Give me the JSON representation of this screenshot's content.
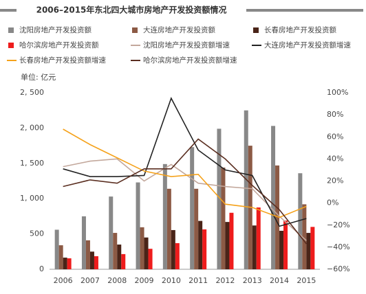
{
  "chart_data": {
    "type": "bar",
    "title": "2006–2015年东北四大城市房地产开发投资额情况",
    "y_label": "单位: 亿元",
    "categories": [
      "2006",
      "2007",
      "2008",
      "2009",
      "2010",
      "2011",
      "2012",
      "2013",
      "2014",
      "2015"
    ],
    "series": [
      {
        "name": "沈阳房地产开发投资额",
        "color": "#888888",
        "values": [
          560,
          750,
          1030,
          1230,
          1490,
          1730,
          1990,
          2250,
          2030,
          1360
        ]
      },
      {
        "name": "大连房地产开发投资额",
        "color": "#8c5a45",
        "values": [
          340,
          410,
          515,
          595,
          1140,
          1140,
          1440,
          1750,
          1470,
          920
        ]
      },
      {
        "name": "长春房地产开发投资额",
        "color": "#4a2418",
        "values": [
          165,
          250,
          350,
          450,
          555,
          685,
          670,
          620,
          545,
          515
        ]
      },
      {
        "name": "哈尔滨房地产开发投资额",
        "color": "#ee1c1c",
        "values": [
          155,
          185,
          215,
          290,
          370,
          565,
          800,
          875,
          690,
          600
        ]
      },
      {
        "name": "沈阳房地产开发投资额增速",
        "color": "#c3a89c",
        "axis": "y2",
        "values": [
          33,
          38,
          40,
          20,
          35,
          18,
          15,
          13,
          -12,
          -34
        ]
      },
      {
        "name": "大连房地产开发投资额增速",
        "color": "#222222",
        "axis": "y2",
        "values": [
          31,
          24,
          24,
          25,
          95,
          48,
          30,
          25,
          -21,
          -14
        ]
      },
      {
        "name": "长春房地产开发投资额增速",
        "color": "#f5a21b",
        "axis": "y2",
        "values": [
          67,
          53,
          41,
          29,
          24,
          26,
          -1,
          -4,
          -13,
          -3
        ]
      },
      {
        "name": "哈尔滨房地产开发投资额增速",
        "color": "#5a2e20",
        "axis": "y2",
        "values": [
          15,
          21,
          18,
          31,
          31,
          58,
          40,
          16,
          -6,
          -37
        ]
      }
    ],
    "ylim": [
      0,
      2500
    ],
    "yticks": [
      0,
      500,
      {
        "value": 1000,
        "label": "1, 000"
      },
      {
        "value": 1500,
        "label": "1, 500"
      },
      {
        "value": 2000,
        "label": "2, 000"
      },
      {
        "value": 2500,
        "label": "2, 500"
      }
    ],
    "y2lim": [
      -60,
      100
    ],
    "y2ticks": [
      {
        "value": -60,
        "label": "−60%"
      },
      {
        "value": -40,
        "label": "−40%"
      },
      {
        "value": -20,
        "label": "−20%"
      },
      {
        "value": 0,
        "label": "0%"
      },
      {
        "value": 20,
        "label": "20%"
      },
      {
        "value": 40,
        "label": "40%"
      },
      {
        "value": 60,
        "label": "60%"
      },
      {
        "value": 80,
        "label": "80%"
      },
      {
        "value": 100,
        "label": "100%"
      }
    ],
    "grid": false
  }
}
